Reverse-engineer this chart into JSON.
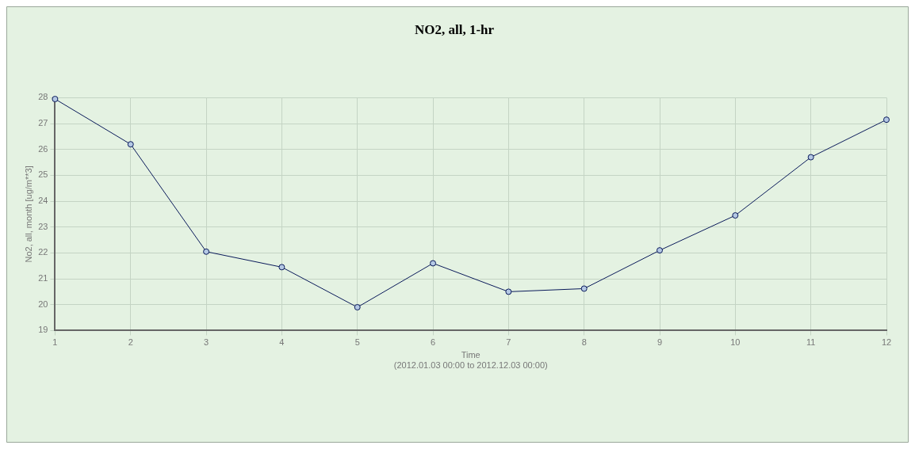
{
  "chart_data": {
    "type": "line",
    "title": "NO2, all, 1-hr",
    "xlabel": "Time\n(2012.01.03 00:00 to 2012.12.03 00:00)",
    "ylabel": "No2, all, month [ug/m**3]",
    "x": [
      1,
      2,
      3,
      4,
      5,
      6,
      7,
      8,
      9,
      10,
      11,
      12
    ],
    "series": [
      {
        "color": "#0a1a5a",
        "values": [
          27.95,
          26.2,
          22.05,
          21.45,
          19.9,
          21.6,
          20.5,
          20.62,
          22.1,
          23.45,
          25.7,
          27.15
        ]
      }
    ],
    "xlim": [
      1,
      12
    ],
    "xticks": [
      1,
      2,
      3,
      4,
      5,
      6,
      7,
      8,
      9,
      10,
      11,
      12
    ],
    "ylim": [
      19,
      28
    ],
    "yticks": [
      19,
      20,
      21,
      22,
      23,
      24,
      25,
      26,
      27,
      28
    ],
    "grid": true,
    "legend": false,
    "marker": "circle",
    "line_style": "solid"
  }
}
